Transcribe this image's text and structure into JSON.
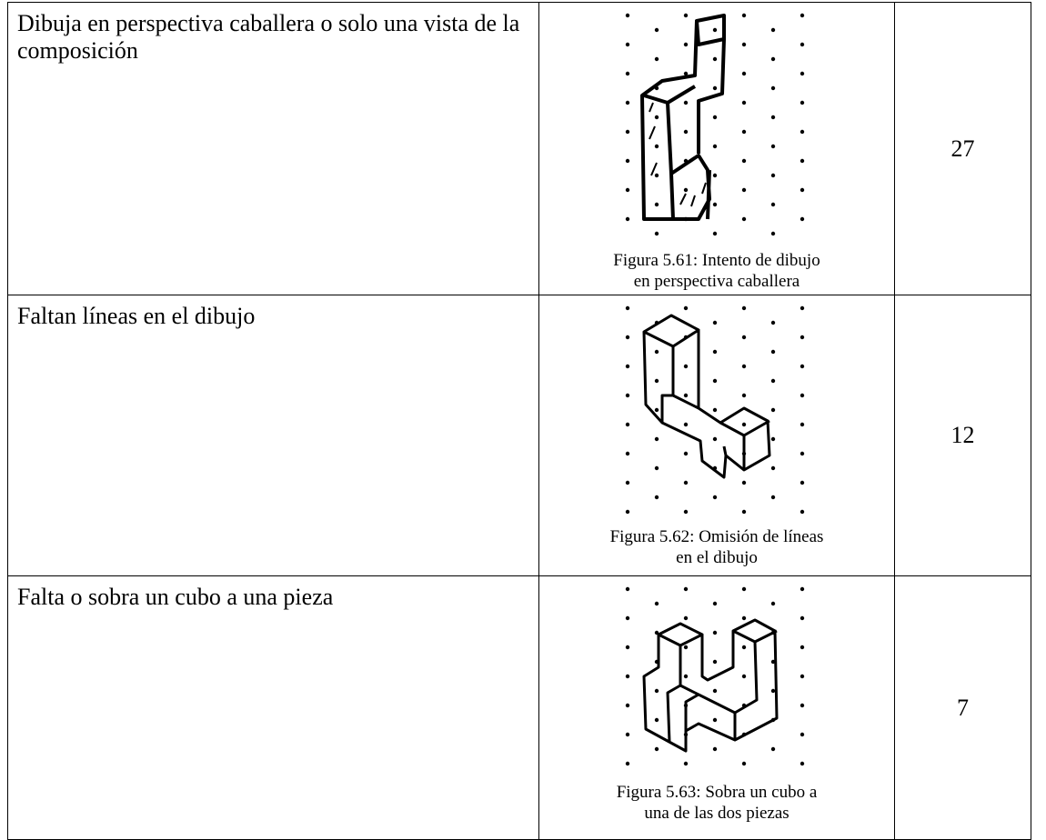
{
  "table": {
    "rows": [
      {
        "description": "Dibuja en perspectiva caballera o solo una vista de la composición",
        "caption": [
          "Figura 5.61: Intento de dibujo",
          "en perspectiva caballera"
        ],
        "count": 27
      },
      {
        "description": "Faltan líneas en el dibujo",
        "caption": [
          "Figura 5.62: Omisión de líneas",
          "en el dibujo"
        ],
        "count": 12
      },
      {
        "description": "Falta o sobra un cubo a una pieza",
        "caption": [
          "Figura 5.63: Sobra un cubo a",
          "una de las dos piezas"
        ],
        "count": 7
      }
    ]
  }
}
